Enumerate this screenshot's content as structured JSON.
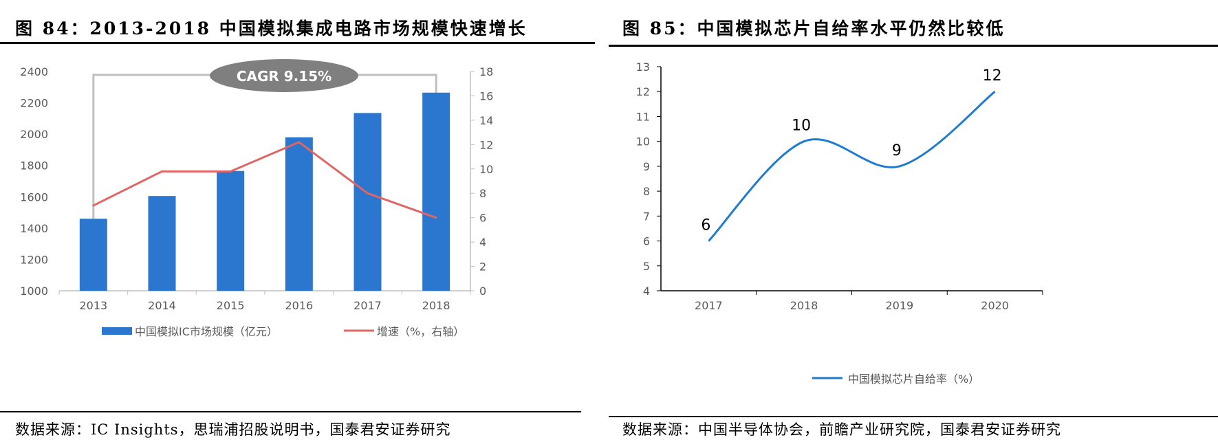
{
  "left": {
    "figure_title": "图 84：2013-2018 中国模拟集成电路市场规模快速增长",
    "source": "数据来源：IC Insights，思瑞浦招股说明书，国泰君安证券研究",
    "cagr_label": "CAGR 9.15%",
    "legend_bar": "中国模拟IC市场规模（亿元）",
    "legend_line": "增速（%，右轴）"
  },
  "right": {
    "figure_title": "图 85：中国模拟芯片自给率水平仍然比较低",
    "source": "数据来源：中国半导体协会，前瞻产业研究院，国泰君安证券研究",
    "legend_line": "中国模拟芯片自给率（%）"
  },
  "colors": {
    "bar": "#2b76cf",
    "growth_line": "#e06666",
    "self_sufficiency_line": "#1f7bd1",
    "cagr_ellipse": "#7f7f7f",
    "cagr_bracket": "#bfbfbf"
  },
  "chart_data": [
    {
      "type": "bar",
      "categories": [
        "2013",
        "2014",
        "2015",
        "2016",
        "2017",
        "2018"
      ],
      "series": [
        {
          "name": "中国模拟IC市场规模（亿元）",
          "type": "bar",
          "axis": "left",
          "values": [
            1460,
            1605,
            1765,
            1980,
            2135,
            2265
          ]
        },
        {
          "name": "增速（%，右轴）",
          "type": "line",
          "axis": "right",
          "values": [
            7,
            9.8,
            9.8,
            12.2,
            8,
            6
          ]
        }
      ],
      "ylim": [
        1000,
        2400
      ],
      "yticks": [
        1000,
        1200,
        1400,
        1600,
        1800,
        2000,
        2200,
        2400
      ],
      "y2lim": [
        0,
        18
      ],
      "y2ticks": [
        0,
        2,
        4,
        6,
        8,
        10,
        12,
        14,
        16,
        18
      ],
      "annotation": "CAGR 9.15%",
      "legend_position": "bottom"
    },
    {
      "type": "line",
      "categories": [
        "2017",
        "2018",
        "2019",
        "2020"
      ],
      "series": [
        {
          "name": "中国模拟芯片自给率（%）",
          "values": [
            6,
            10,
            9,
            12
          ],
          "smooth": true,
          "data_labels": [
            "6",
            "10",
            "9",
            "12"
          ]
        }
      ],
      "ylim": [
        4,
        13
      ],
      "yticks": [
        4,
        5,
        6,
        7,
        8,
        9,
        10,
        11,
        12,
        13
      ],
      "legend_position": "bottom"
    }
  ]
}
